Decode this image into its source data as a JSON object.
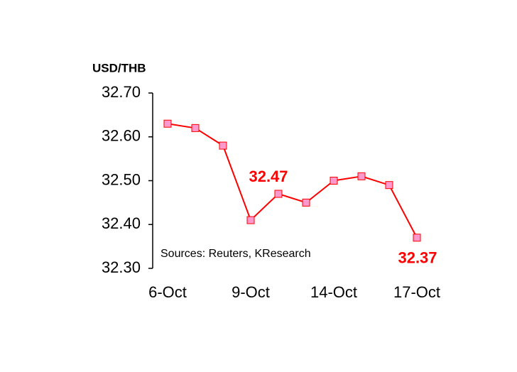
{
  "chart_data": {
    "type": "line",
    "y_label": "USD/THB",
    "source": "Sources: Reuters, KResearch",
    "categories": [
      "6-Oct",
      null,
      null,
      "9-Oct",
      null,
      null,
      "14-Oct",
      null,
      null,
      "17-Oct"
    ],
    "series": [
      {
        "color": "#ff0000",
        "marker_color": "#ff99cc",
        "values": [
          32.63,
          32.62,
          32.58,
          32.41,
          32.47,
          32.45,
          32.5,
          32.51,
          32.49,
          32.37
        ],
        "value_labels": [
          null,
          null,
          null,
          null,
          "32.47",
          null,
          null,
          null,
          null,
          "32.37"
        ]
      }
    ],
    "ylim": [
      32.3,
      32.7
    ],
    "yticks": [
      {
        "value": 32.3,
        "label": "32.30"
      },
      {
        "value": 32.4,
        "label": "32.40"
      },
      {
        "value": 32.5,
        "label": "32.50"
      },
      {
        "value": 32.6,
        "label": "32.60"
      },
      {
        "value": 32.7,
        "label": "32.70"
      }
    ]
  }
}
